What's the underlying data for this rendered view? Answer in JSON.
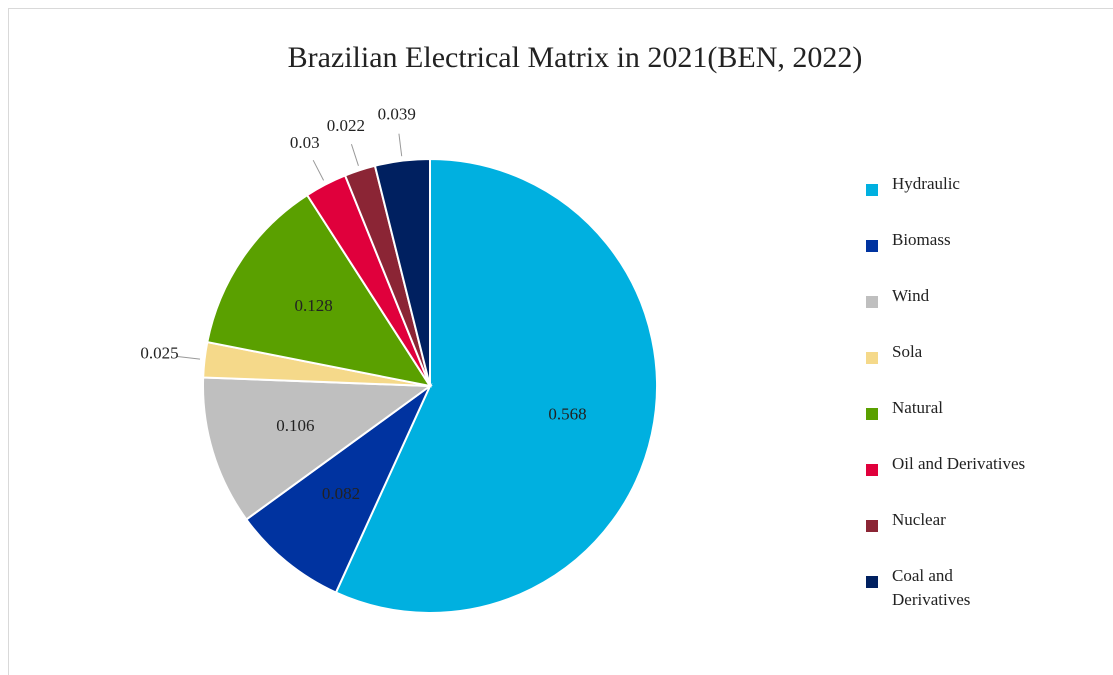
{
  "chart_data": {
    "type": "pie",
    "title": "Brazilian Electrical Matrix in 2021(BEN, 2022)",
    "categories": [
      "Hydraulic",
      "Biomass",
      "Wind",
      "Sola",
      "Natural",
      "Oil and Derivatives",
      "Nuclear",
      "Coal and Derivatives"
    ],
    "values": [
      0.568,
      0.082,
      0.106,
      0.025,
      0.128,
      0.03,
      0.022,
      0.039
    ],
    "colors": [
      "#00b0e0",
      "#0033a0",
      "#bfbfbf",
      "#f5d98a",
      "#5aa000",
      "#e0003c",
      "#8b2535",
      "#002060"
    ],
    "legend": "right"
  }
}
